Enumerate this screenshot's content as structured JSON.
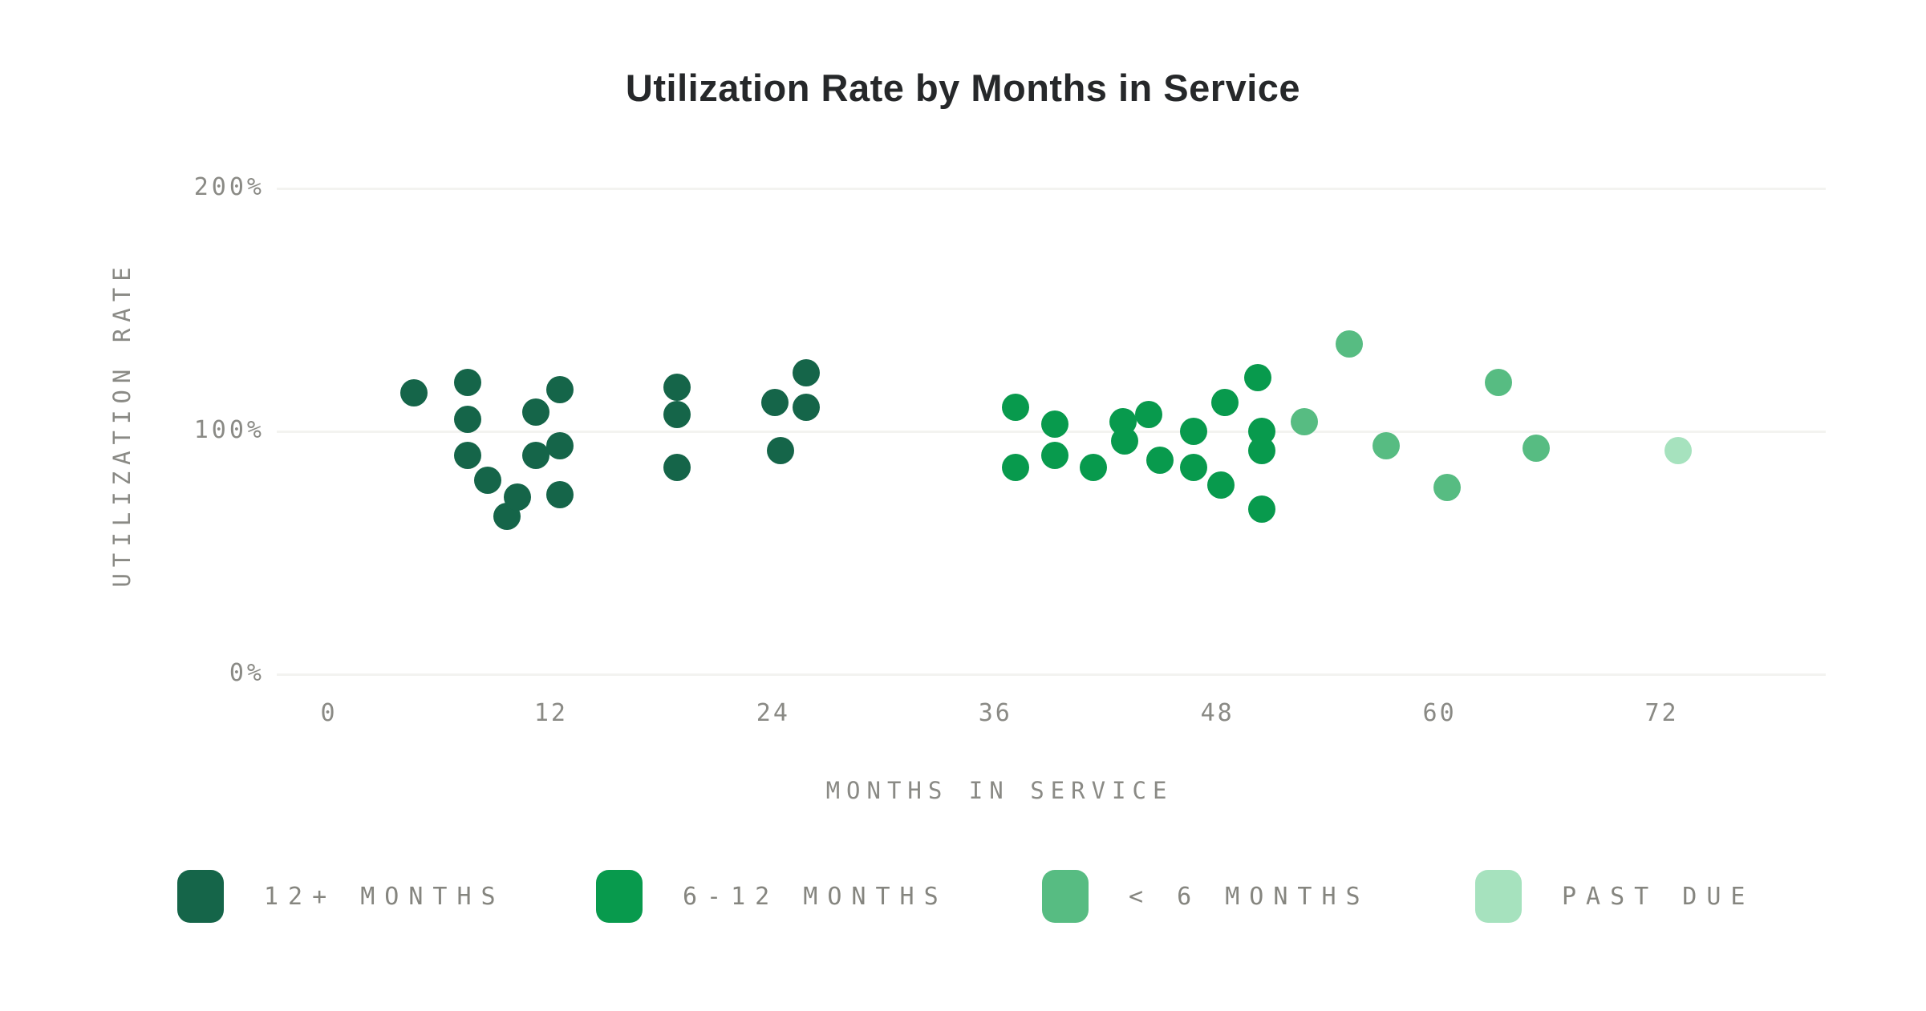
{
  "chart": {
    "title": "Utilization Rate by Months in Service"
  },
  "chart_data": {
    "type": "scatter",
    "title": "Utilization Rate by Months in Service",
    "xlabel": "MONTHS IN SERVICE",
    "ylabel": "UTILIZATION RATE",
    "xlim": [
      -3,
      81
    ],
    "ylim": [
      0,
      200
    ],
    "grid": "horizontal-only",
    "legend_position": "bottom",
    "x_ticks": [
      {
        "value": 0,
        "label": "0"
      },
      {
        "value": 12,
        "label": "12"
      },
      {
        "value": 24,
        "label": "24"
      },
      {
        "value": 36,
        "label": "36"
      },
      {
        "value": 48,
        "label": "48"
      },
      {
        "value": 60,
        "label": "60"
      },
      {
        "value": 72,
        "label": "72"
      }
    ],
    "y_ticks": [
      {
        "value": 0,
        "label": "0%"
      },
      {
        "value": 100,
        "label": "100%"
      },
      {
        "value": 200,
        "label": "200%"
      }
    ],
    "series": [
      {
        "name": "12+ MONTHS",
        "color": "#156549",
        "points": [
          [
            4.6,
            116
          ],
          [
            7.5,
            120
          ],
          [
            7.5,
            105
          ],
          [
            7.5,
            90
          ],
          [
            8.6,
            80
          ],
          [
            9.6,
            65
          ],
          [
            10.2,
            73
          ],
          [
            11.2,
            108
          ],
          [
            11.2,
            90
          ],
          [
            12.5,
            117
          ],
          [
            12.5,
            94
          ],
          [
            12.5,
            74
          ],
          [
            18.8,
            118
          ],
          [
            18.8,
            107
          ],
          [
            18.8,
            85
          ],
          [
            24.1,
            112
          ],
          [
            24.4,
            92
          ],
          [
            25.8,
            124
          ],
          [
            25.8,
            110
          ]
        ]
      },
      {
        "name": "6-12 MONTHS",
        "color": "#089A4D",
        "points": [
          [
            37.1,
            110
          ],
          [
            37.1,
            85
          ],
          [
            39.2,
            103
          ],
          [
            39.2,
            90
          ],
          [
            41.3,
            85
          ],
          [
            42.9,
            104
          ],
          [
            43.0,
            96
          ],
          [
            44.3,
            107
          ],
          [
            44.9,
            88
          ],
          [
            46.7,
            100
          ],
          [
            46.7,
            85
          ],
          [
            48.2,
            78
          ],
          [
            48.4,
            112
          ],
          [
            50.2,
            122
          ],
          [
            50.4,
            100
          ],
          [
            50.4,
            92
          ],
          [
            50.4,
            68
          ]
        ]
      },
      {
        "name": "< 6 MONTHS",
        "color": "#57BC82",
        "points": [
          [
            52.7,
            104
          ],
          [
            55.1,
            136
          ],
          [
            57.1,
            94
          ],
          [
            60.4,
            77
          ],
          [
            63.2,
            120
          ],
          [
            65.2,
            93
          ]
        ]
      },
      {
        "name": "PAST DUE",
        "color": "#A6E2BE",
        "points": [
          [
            72.9,
            92
          ]
        ]
      }
    ]
  }
}
